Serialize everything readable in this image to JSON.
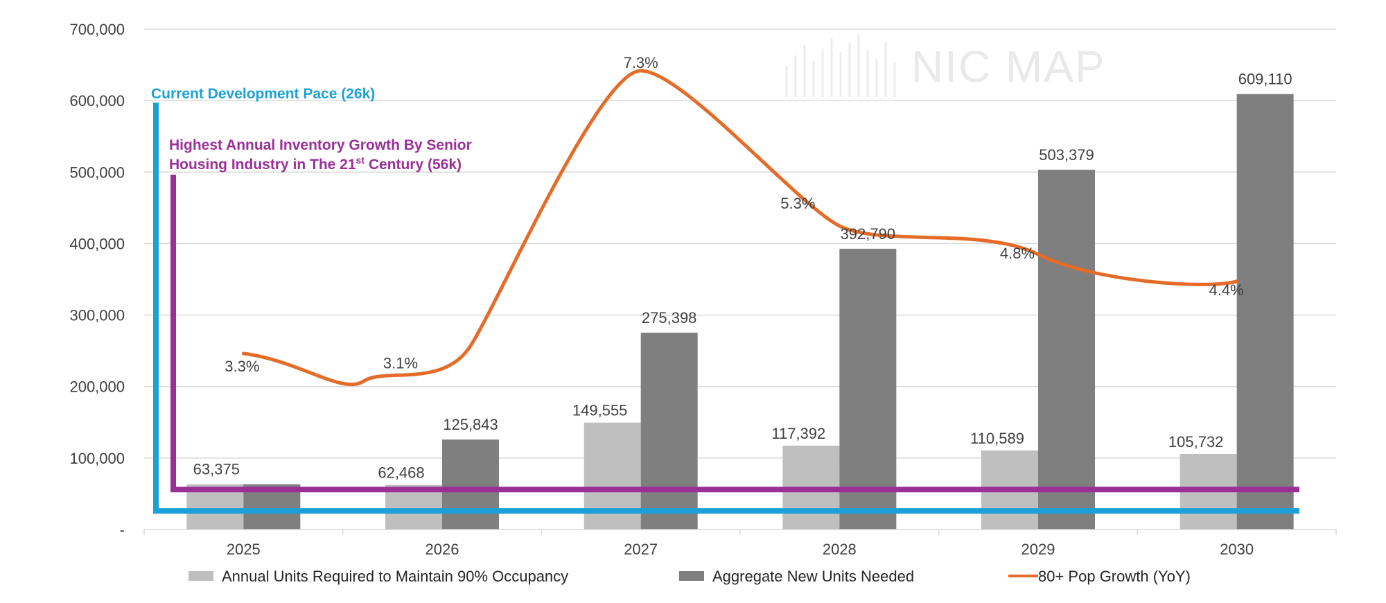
{
  "watermark": {
    "text": "NIC MAP"
  },
  "chart_data": {
    "type": "bar",
    "categories": [
      "2025",
      "2026",
      "2027",
      "2028",
      "2029",
      "2030"
    ],
    "ylim": [
      0,
      700000
    ],
    "yticks": [
      {
        "value": 0,
        "label": "-"
      },
      {
        "value": 100000,
        "label": "100,000"
      },
      {
        "value": 200000,
        "label": "200,000"
      },
      {
        "value": 300000,
        "label": "300,000"
      },
      {
        "value": 400000,
        "label": "400,000"
      },
      {
        "value": 500000,
        "label": "500,000"
      },
      {
        "value": 600000,
        "label": "600,000"
      },
      {
        "value": 700000,
        "label": "700,000"
      }
    ],
    "grid": true,
    "legend_position": "bottom",
    "series": [
      {
        "name": "Annual Units Required to Maintain 90% Occupancy",
        "type": "bar",
        "color": "#bfbfbf",
        "values": [
          63375,
          62468,
          149555,
          117392,
          110589,
          105732
        ],
        "labels": [
          "",
          "62,468",
          "149,555",
          "117,392",
          "110,589",
          "105,732"
        ]
      },
      {
        "name": "Aggregate New Units Needed",
        "type": "bar",
        "color": "#7f7f7f",
        "values": [
          63375,
          125843,
          275398,
          392790,
          503379,
          609110
        ],
        "labels": [
          "63,375",
          "125,843",
          "275,398",
          "392,790",
          "503,379",
          "609,110"
        ]
      },
      {
        "name": "80+ Pop Growth (YoY)",
        "type": "line",
        "color": "#e46c28",
        "values": [
          3.3,
          3.1,
          7.3,
          5.3,
          4.8,
          4.4
        ],
        "labels": [
          "3.3%",
          "3.1%",
          "7.3%",
          "5.3%",
          "4.8%",
          "4.4%"
        ]
      }
    ],
    "reference_lines": [
      {
        "label": "Current Development Pace (26k)",
        "value": 26000,
        "color": "#1ba1d6"
      },
      {
        "label_line1": "Highest Annual Inventory Growth By Senior",
        "label_line2_pre": "Housing Industry in The 21",
        "label_line2_sup": "st",
        "label_line2_post": " Century (56k)",
        "value": 56000,
        "color": "#9b2f98"
      }
    ]
  }
}
